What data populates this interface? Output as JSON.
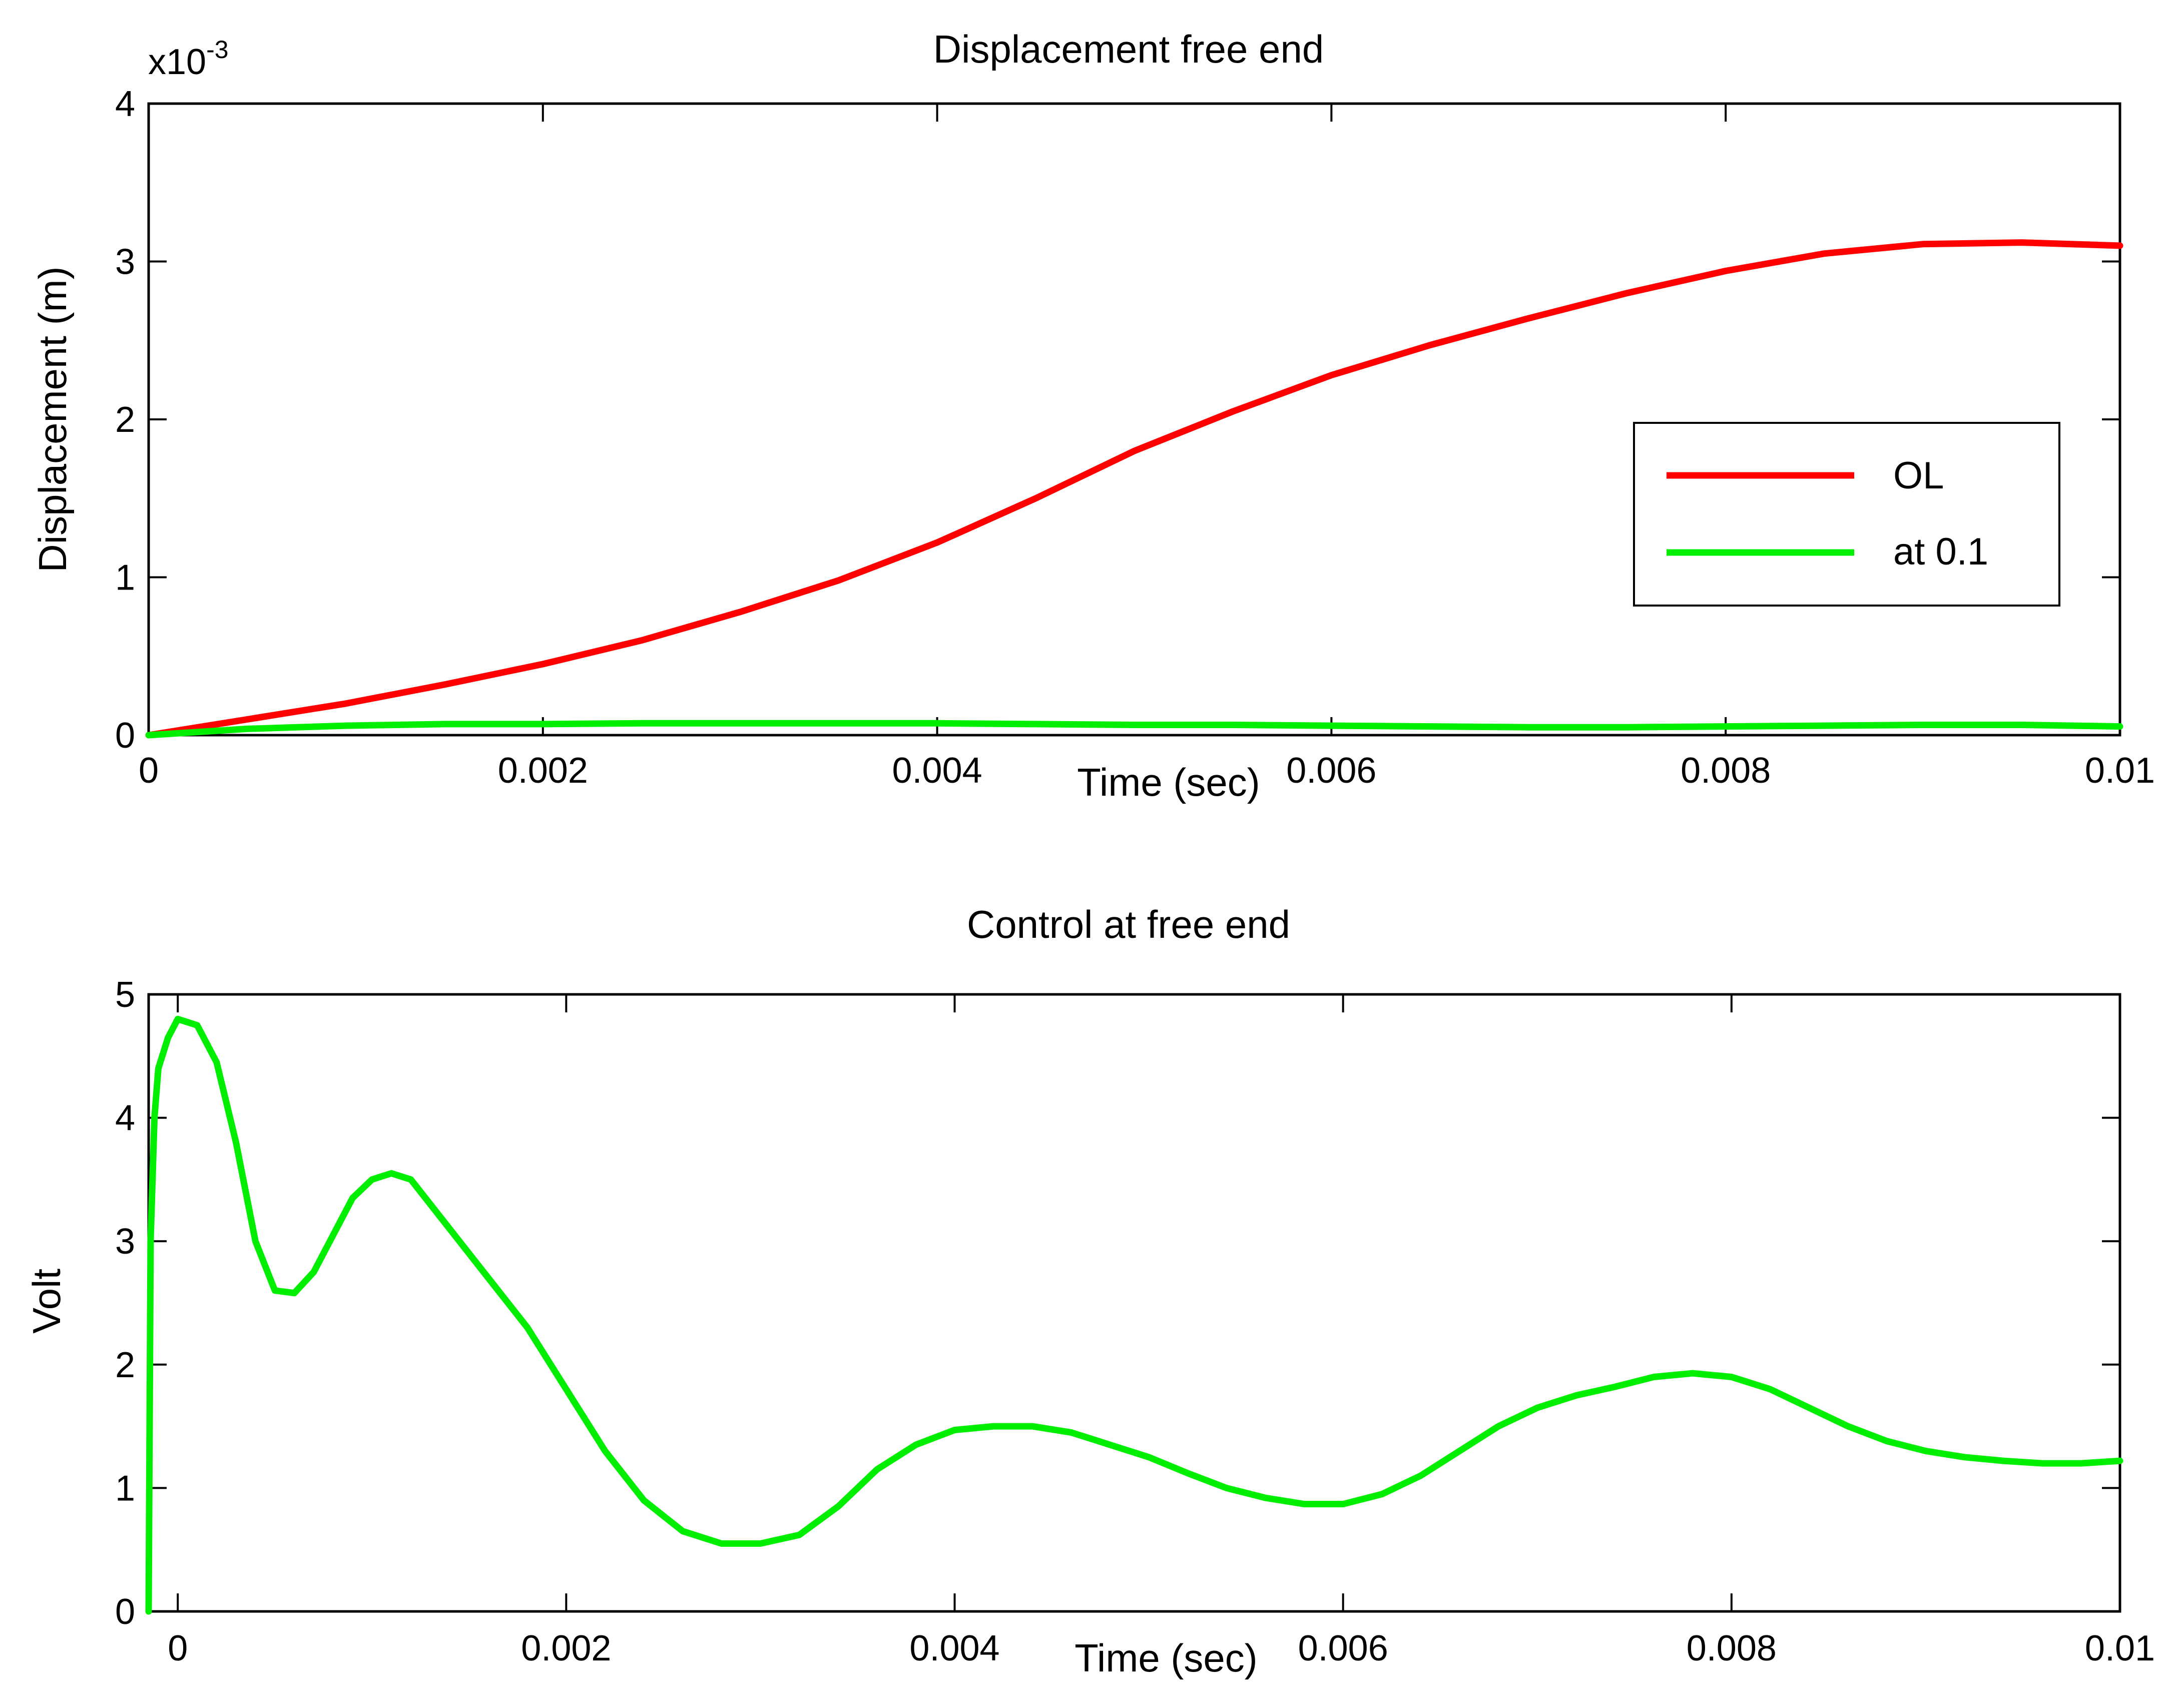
{
  "chart_data": [
    {
      "type": "line",
      "title": "Displacement free end",
      "xlabel": "Time (sec)",
      "ylabel": "Displacement (m)",
      "y_exponent_label": "x10",
      "y_exponent_power": "-3",
      "xlim": [
        0,
        0.01
      ],
      "ylim": [
        0,
        4
      ],
      "x_ticks": [
        0,
        0.002,
        0.004,
        0.006,
        0.008,
        0.01
      ],
      "x_tick_labels": [
        "0",
        "0.002",
        "0.004",
        "0.006",
        "0.008",
        "0.01"
      ],
      "y_ticks": [
        0,
        1,
        2,
        3,
        4
      ],
      "y_tick_labels": [
        "0",
        "1",
        "2",
        "3",
        "4"
      ],
      "grid": false,
      "legend_position": "right",
      "series": [
        {
          "name": "OL",
          "color": "#ff0000",
          "x": [
            0,
            0.0005,
            0.001,
            0.0015,
            0.002,
            0.0025,
            0.003,
            0.0035,
            0.004,
            0.0045,
            0.005,
            0.0055,
            0.006,
            0.0065,
            0.007,
            0.0075,
            0.008,
            0.0085,
            0.009,
            0.0095,
            0.01
          ],
          "y": [
            0,
            0.1,
            0.2,
            0.32,
            0.45,
            0.6,
            0.78,
            0.98,
            1.22,
            1.5,
            1.8,
            2.05,
            2.28,
            2.47,
            2.64,
            2.8,
            2.94,
            3.05,
            3.11,
            3.12,
            3.1
          ]
        },
        {
          "name": "at 0.1",
          "color": "#00ee00",
          "x": [
            0,
            0.0005,
            0.001,
            0.0015,
            0.002,
            0.0025,
            0.003,
            0.0035,
            0.004,
            0.0045,
            0.005,
            0.0055,
            0.006,
            0.0065,
            0.007,
            0.0075,
            0.008,
            0.0085,
            0.009,
            0.0095,
            0.01
          ],
          "y": [
            0,
            0.04,
            0.06,
            0.07,
            0.07,
            0.075,
            0.075,
            0.075,
            0.075,
            0.07,
            0.065,
            0.065,
            0.06,
            0.055,
            0.05,
            0.05,
            0.055,
            0.06,
            0.065,
            0.065,
            0.055
          ]
        }
      ]
    },
    {
      "type": "line",
      "title": "Control at free end",
      "xlabel": "Time (sec)",
      "ylabel": "Volt",
      "xlim": [
        -0.00015,
        0.01
      ],
      "ylim": [
        0,
        5
      ],
      "x_ticks": [
        0,
        0.002,
        0.004,
        0.006,
        0.008,
        0.01
      ],
      "x_tick_labels": [
        "0",
        "0.002",
        "0.004",
        "0.006",
        "0.008",
        "0.01"
      ],
      "y_ticks": [
        0,
        1,
        2,
        3,
        4,
        5
      ],
      "y_tick_labels": [
        "0",
        "1",
        "2",
        "3",
        "4",
        "5"
      ],
      "grid": false,
      "series": [
        {
          "color": "#00ee00",
          "x": [
            -0.00015,
            -0.00014,
            -0.00012,
            -0.0001,
            -5e-05,
            0,
            0.0001,
            0.0002,
            0.0003,
            0.0004,
            0.0005,
            0.0006,
            0.0007,
            0.0008,
            0.0009,
            0.001,
            0.0011,
            0.0012,
            0.0013,
            0.0014,
            0.0015,
            0.0016,
            0.0018,
            0.002,
            0.0022,
            0.0024,
            0.0026,
            0.0028,
            0.003,
            0.0032,
            0.0034,
            0.0036,
            0.0038,
            0.004,
            0.0042,
            0.0044,
            0.0046,
            0.0048,
            0.005,
            0.0052,
            0.0054,
            0.0056,
            0.0058,
            0.006,
            0.0062,
            0.0064,
            0.0066,
            0.0068,
            0.007,
            0.0072,
            0.0074,
            0.0076,
            0.0078,
            0.008,
            0.0082,
            0.0084,
            0.0086,
            0.0088,
            0.009,
            0.0092,
            0.0094,
            0.0096,
            0.0098,
            0.01
          ],
          "y": [
            0,
            3.0,
            4.0,
            4.4,
            4.65,
            4.8,
            4.75,
            4.45,
            3.8,
            3.0,
            2.6,
            2.58,
            2.75,
            3.05,
            3.35,
            3.5,
            3.55,
            3.5,
            3.3,
            3.1,
            2.9,
            2.7,
            2.3,
            1.8,
            1.3,
            0.9,
            0.65,
            0.55,
            0.55,
            0.62,
            0.85,
            1.15,
            1.35,
            1.47,
            1.5,
            1.5,
            1.45,
            1.35,
            1.25,
            1.12,
            1.0,
            0.92,
            0.87,
            0.87,
            0.95,
            1.1,
            1.3,
            1.5,
            1.65,
            1.75,
            1.82,
            1.9,
            1.93,
            1.9,
            1.8,
            1.65,
            1.5,
            1.38,
            1.3,
            1.25,
            1.22,
            1.2,
            1.2,
            1.22
          ]
        }
      ]
    }
  ]
}
